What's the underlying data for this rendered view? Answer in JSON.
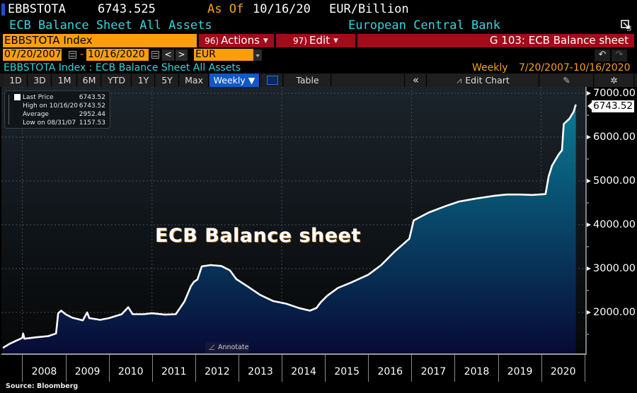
{
  "header": {
    "ticker": "EBBSTOTA",
    "last_value": "6743.525",
    "as_of_label": "As Of",
    "as_of_date": "10/16/20",
    "unit": "EUR/Billion",
    "description": "ECB Balance Sheet All Assets",
    "issuer": "European Central Bank"
  },
  "command_bar": {
    "security": "EBBSTOTA Index",
    "actions_num": "96)",
    "actions_label": "Actions",
    "edit_num": "97)",
    "edit_label": "Edit",
    "graph_title": "G 103: ECB Balance sheet"
  },
  "date_range": {
    "start": "07/20/2007",
    "separator": "-",
    "end": "10/16/2020",
    "prev": "<",
    "next": ">",
    "currency": "EUR"
  },
  "subtitle": {
    "text": "EBBSTOTA Index : ECB Balance Sheet All Assets",
    "period": "Weekly",
    "range": "7/20/2007-10/16/2020"
  },
  "toolbar": {
    "periods": [
      "1D",
      "3D",
      "1M",
      "6M",
      "YTD",
      "1Y",
      "5Y",
      "Max"
    ],
    "frequency": "Weekly ▼",
    "table": "Table",
    "collapse": "«",
    "edit_chart": "Edit Chart",
    "undo": "↶",
    "redo": "↷",
    "settings": "✲"
  },
  "legend": {
    "last_price_label": "Last Price",
    "last_price_value": "6743.52",
    "high_label": "High on 10/16/20",
    "high_value": "6743.52",
    "average_label": "Average",
    "average_value": "2952.44",
    "low_label": "Low on 08/31/07",
    "low_value": "1157.53"
  },
  "annotation": "ECB Balance sheet",
  "annotate_button": "Annotate",
  "last_price_tag": "6743.52",
  "source": "Source: Bloomberg",
  "colors": {
    "orange": "#fb9e0d",
    "red": "#a10b1a",
    "cyan": "#33d6df",
    "amber_text": "#f7a21b",
    "active_blue": "#1059c8",
    "line": "#ffffff",
    "fill_top": "#0a6f8a",
    "fill_bottom": "#0b0f3c"
  },
  "chart_data": {
    "type": "area",
    "title": "ECB Balance sheet",
    "subtitle": "EBBSTOTA Index : ECB Balance Sheet All Assets",
    "xlabel": "",
    "ylabel": "EUR/Billion",
    "ylim": [
      1065,
      7100
    ],
    "yticks": [
      2000,
      3000,
      4000,
      5000,
      6000,
      7000
    ],
    "ytick_labels": [
      "2000.00",
      "3000.00",
      "4000.00",
      "5000.00",
      "6000.00",
      "7000.00"
    ],
    "xticks": [
      "2008",
      "2009",
      "2010",
      "2011",
      "2012",
      "2013",
      "2014",
      "2015",
      "2016",
      "2017",
      "2018",
      "2019",
      "2020"
    ],
    "grid": true,
    "legend_position": "top-left",
    "frequency": "Weekly",
    "series": [
      {
        "name": "Last Price",
        "x": [
          2007.55,
          2007.7,
          2007.85,
          2008.0,
          2008.02,
          2008.05,
          2008.3,
          2008.6,
          2008.78,
          2008.83,
          2008.9,
          2009.0,
          2009.15,
          2009.4,
          2009.5,
          2009.55,
          2009.8,
          2010.0,
          2010.3,
          2010.45,
          2010.55,
          2010.8,
          2011.0,
          2011.3,
          2011.55,
          2011.75,
          2011.9,
          2011.97,
          2012.05,
          2012.15,
          2012.35,
          2012.6,
          2012.8,
          2012.95,
          2013.2,
          2013.5,
          2013.8,
          2014.1,
          2014.4,
          2014.65,
          2014.8,
          2014.9,
          2015.05,
          2015.3,
          2015.6,
          2016.0,
          2016.3,
          2016.6,
          2016.95,
          2017.05,
          2017.4,
          2017.8,
          2018.1,
          2018.5,
          2018.9,
          2019.2,
          2019.5,
          2019.8,
          2020.1,
          2020.17,
          2020.25,
          2020.4,
          2020.48,
          2020.52,
          2020.65,
          2020.75,
          2020.8
        ],
        "values": [
          1190,
          1280,
          1350,
          1420,
          1520,
          1400,
          1430,
          1460,
          1520,
          1980,
          2040,
          1960,
          1880,
          1820,
          2000,
          1870,
          1830,
          1870,
          1960,
          2120,
          1960,
          1960,
          1980,
          1950,
          1960,
          2250,
          2600,
          2700,
          2750,
          3050,
          3080,
          3060,
          2960,
          2760,
          2600,
          2400,
          2260,
          2200,
          2100,
          2040,
          2100,
          2230,
          2380,
          2560,
          2680,
          2860,
          3080,
          3380,
          3680,
          4100,
          4280,
          4430,
          4530,
          4600,
          4660,
          4690,
          4690,
          4680,
          4700,
          5100,
          5350,
          5600,
          5700,
          6300,
          6420,
          6580,
          6743.52
        ]
      }
    ],
    "stats": {
      "last": 6743.52,
      "high": 6743.52,
      "high_date": "10/16/20",
      "average": 2952.44,
      "low": 1157.53,
      "low_date": "08/31/07"
    }
  }
}
